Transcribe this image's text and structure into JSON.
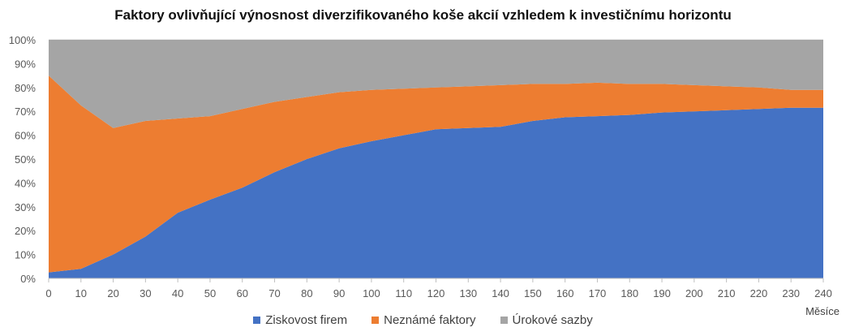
{
  "chart_data": {
    "type": "area",
    "stacked": "percent",
    "title": "Faktory ovlivňující výnosnost diverzifikovaného koše akcií vzhledem k investičnímu horizontu",
    "xlabel": "Měsíce",
    "ylabel": "",
    "x": [
      0,
      10,
      20,
      30,
      40,
      50,
      60,
      70,
      80,
      90,
      100,
      110,
      120,
      130,
      140,
      150,
      160,
      170,
      180,
      190,
      200,
      210,
      220,
      230,
      240
    ],
    "ylim": [
      0,
      100
    ],
    "y_ticks": [
      "0%",
      "10%",
      "20%",
      "30%",
      "40%",
      "50%",
      "60%",
      "70%",
      "80%",
      "90%",
      "100%"
    ],
    "x_ticks": [
      "0",
      "10",
      "20",
      "30",
      "40",
      "50",
      "60",
      "70",
      "80",
      "90",
      "100",
      "110",
      "120",
      "130",
      "140",
      "150",
      "160",
      "170",
      "180",
      "190",
      "200",
      "210",
      "220",
      "230",
      "240"
    ],
    "grid": "horizontal",
    "legend_position": "bottom",
    "series": [
      {
        "name": "Ziskovost firem",
        "color": "#4472C4",
        "values": [
          2.5,
          4,
          10,
          17.5,
          27.5,
          33,
          38,
          44.5,
          50,
          54.5,
          57.5,
          60,
          62.5,
          63,
          63.5,
          66,
          67.5,
          68,
          68.5,
          69.5,
          70,
          70.5,
          71,
          71.5,
          71.5
        ]
      },
      {
        "name": "Neznámé faktory",
        "color": "#ED7D31",
        "values": [
          82.5,
          68.5,
          53,
          48.5,
          39.5,
          35,
          33,
          29.5,
          26,
          23.5,
          21.5,
          19.5,
          17.5,
          17.5,
          17.5,
          15.5,
          14,
          14,
          13,
          12,
          11,
          10,
          9,
          7.5,
          7.5
        ]
      },
      {
        "name": "Úrokové sazby",
        "color": "#A5A5A5",
        "values": [
          15,
          27.5,
          37,
          34,
          33,
          32,
          29,
          26,
          24,
          22,
          21,
          20.5,
          20,
          19.5,
          19,
          18.5,
          18.5,
          18,
          18.5,
          18.5,
          19,
          19.5,
          20,
          21,
          21
        ]
      }
    ]
  }
}
